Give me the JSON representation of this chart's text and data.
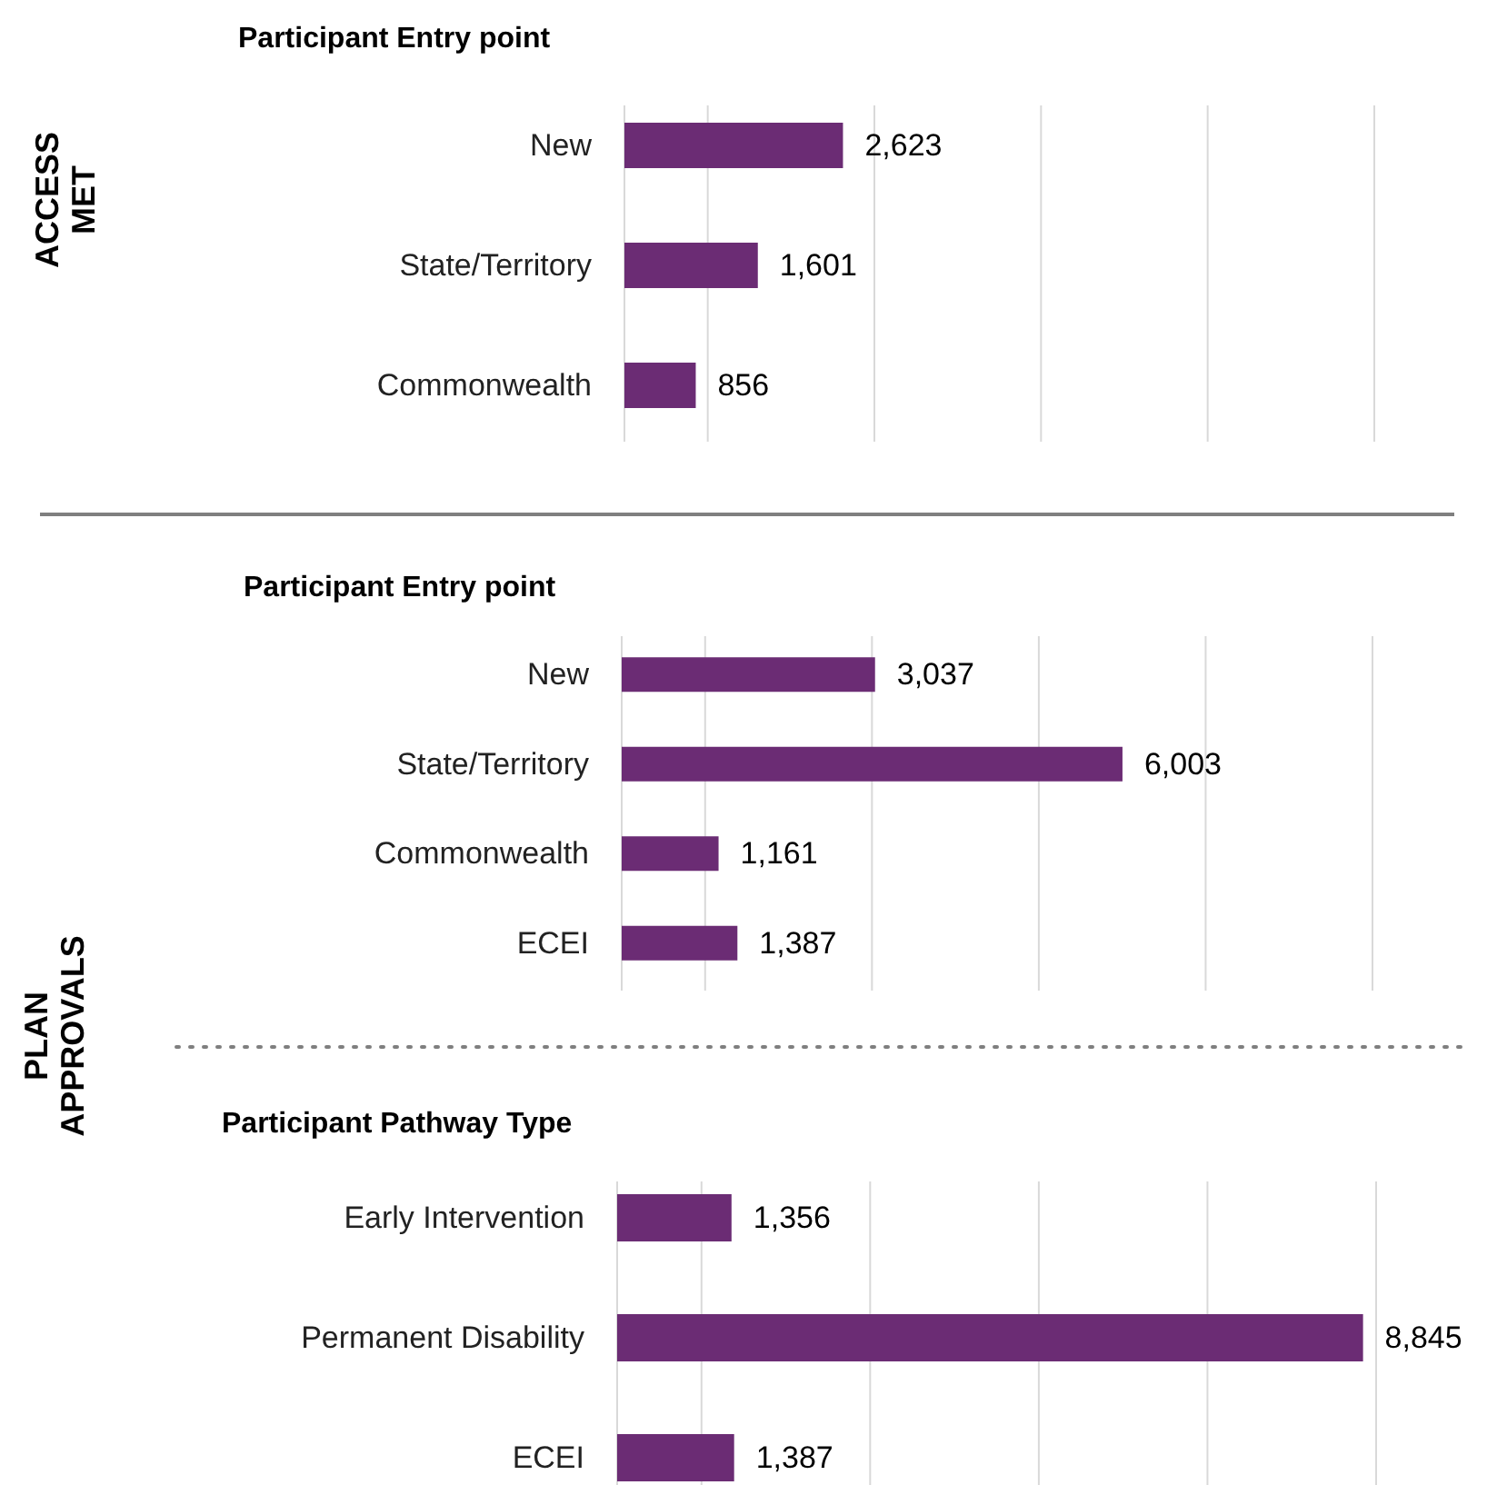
{
  "chart_data": [
    {
      "type": "bar",
      "orientation": "horizontal",
      "title": "Participant Entry point",
      "annotations": [
        "ACCESS MET"
      ],
      "categories": [
        "New",
        "State/Territory",
        "Commonwealth"
      ],
      "values": [
        2623,
        1601,
        856
      ],
      "value_labels": [
        "2,623",
        "1,601",
        "856"
      ],
      "color": "#6b2c74",
      "xlim": [
        0,
        9000
      ],
      "xticks": [
        {
          "value": 1000,
          "label": null
        },
        {
          "value": 3000,
          "label": null
        },
        {
          "value": 5000,
          "label": null
        },
        {
          "value": 7000,
          "label": null
        },
        {
          "value": 9000,
          "label": null
        }
      ],
      "grid": "x",
      "tick_labels": "y",
      "legend": false
    },
    {
      "type": "bar",
      "orientation": "horizontal",
      "title": "Participant Entry point",
      "annotations": [
        "PLAN APPROVALS"
      ],
      "categories": [
        "New",
        "State/Territory",
        "Commonwealth",
        "ECEI"
      ],
      "values": [
        3037,
        6003,
        1161,
        1387
      ],
      "value_labels": [
        "3,037",
        "6,003",
        "1,161",
        "1,387"
      ],
      "color": "#6b2c74",
      "xlim": [
        0,
        9000
      ],
      "xticks": [
        {
          "value": 1000,
          "label": null
        },
        {
          "value": 3000,
          "label": null
        },
        {
          "value": 5000,
          "label": null
        },
        {
          "value": 7000,
          "label": null
        },
        {
          "value": 9000,
          "label": null
        }
      ],
      "grid": "x",
      "tick_labels": "y",
      "legend": false
    },
    {
      "type": "bar",
      "orientation": "horizontal",
      "title": "Participant Pathway Type",
      "categories": [
        "Early Intervention",
        "Permanent Disability",
        "ECEI"
      ],
      "values": [
        1356,
        8845,
        1387
      ],
      "value_labels": [
        "1,356",
        "8,845",
        "1,387"
      ],
      "color": "#6b2c74",
      "xlim": [
        0,
        9000
      ],
      "xticks": [
        {
          "value": 1000,
          "label": null
        },
        {
          "value": 3000,
          "label": null
        },
        {
          "value": 5000,
          "label": null
        },
        {
          "value": 7000,
          "label": null
        },
        {
          "value": 9000,
          "label": null
        }
      ],
      "grid": "x",
      "tick_labels": "y",
      "legend": false
    }
  ]
}
